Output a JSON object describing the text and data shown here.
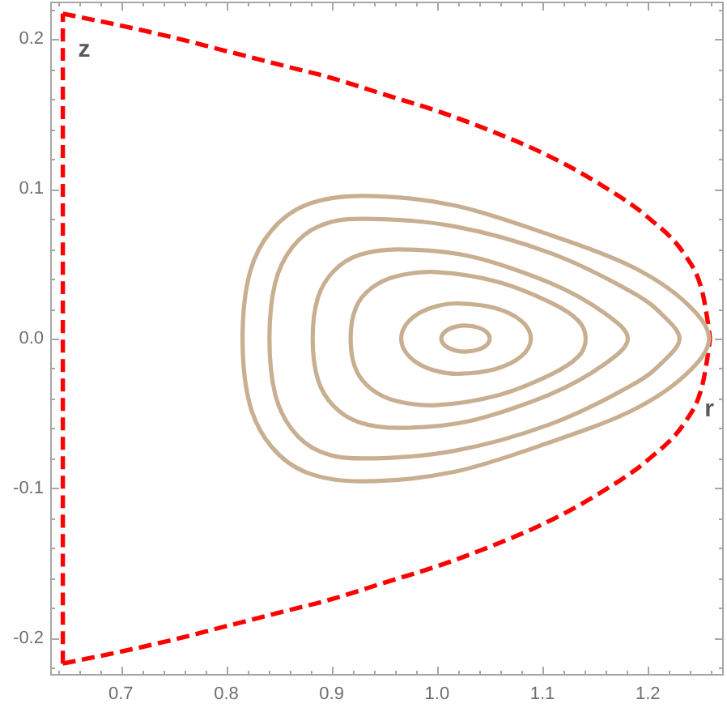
{
  "chart_data": {
    "type": "line",
    "xlabel": "r",
    "ylabel": "z",
    "marker": "none",
    "grid": false,
    "legend": false,
    "xlim": [
      0.633,
      1.272
    ],
    "ylim": [
      -0.225,
      0.225
    ],
    "xticks": [
      {
        "value": 0.64,
        "label": null
      },
      {
        "value": 0.66,
        "label": null
      },
      {
        "value": 0.68,
        "label": null
      },
      0.7,
      {
        "value": 0.72,
        "label": null
      },
      {
        "value": 0.74,
        "label": null
      },
      {
        "value": 0.76,
        "label": null
      },
      {
        "value": 0.78,
        "label": null
      },
      0.8,
      {
        "value": 0.82,
        "label": null
      },
      {
        "value": 0.84,
        "label": null
      },
      {
        "value": 0.86,
        "label": null
      },
      {
        "value": 0.88,
        "label": null
      },
      0.9,
      {
        "value": 0.92,
        "label": null
      },
      {
        "value": 0.94,
        "label": null
      },
      {
        "value": 0.96,
        "label": null
      },
      {
        "value": 0.98,
        "label": null
      },
      {
        "value": 1,
        "label": "1.0"
      },
      {
        "value": 1.02,
        "label": null
      },
      {
        "value": 1.04,
        "label": null
      },
      {
        "value": 1.06,
        "label": null
      },
      {
        "value": 1.08,
        "label": null
      },
      1.1,
      {
        "value": 1.12,
        "label": null
      },
      {
        "value": 1.14,
        "label": null
      },
      {
        "value": 1.16,
        "label": null
      },
      {
        "value": 1.18,
        "label": null
      },
      1.2,
      {
        "value": 1.22,
        "label": null
      },
      {
        "value": 1.24,
        "label": null
      },
      {
        "value": 1.26,
        "label": null
      }
    ],
    "yticks": [
      {
        "value": -0.22,
        "label": null
      },
      -0.2,
      {
        "value": -0.18,
        "label": null
      },
      {
        "value": -0.16,
        "label": null
      },
      {
        "value": -0.14,
        "label": null
      },
      {
        "value": -0.12,
        "label": null
      },
      -0.1,
      {
        "value": -0.08,
        "label": null
      },
      {
        "value": -0.06,
        "label": null
      },
      {
        "value": -0.04,
        "label": null
      },
      {
        "value": -0.02,
        "label": null
      },
      {
        "value": 0,
        "label": "0.0"
      },
      {
        "value": 0.02,
        "label": null
      },
      {
        "value": 0.04,
        "label": null
      },
      {
        "value": 0.06,
        "label": null
      },
      {
        "value": 0.08,
        "label": null
      },
      0.1,
      {
        "value": 0.12,
        "label": null
      },
      {
        "value": 0.14,
        "label": null
      },
      {
        "value": 0.16,
        "label": null
      },
      {
        "value": 0.18,
        "label": null
      },
      0.2,
      {
        "value": 0.22,
        "label": null
      }
    ],
    "series": [
      {
        "color": "#ff0000",
        "line_style": "dashed",
        "x": [
          0.645,
          0.645
        ],
        "values": [
          -0.217,
          0.217
        ]
      },
      {
        "color": "#ff0000",
        "line_style": "dashed",
        "x": [
          0.645,
          0.7,
          0.75,
          0.8,
          0.85,
          0.9,
          0.95,
          1.0,
          1.05,
          1.1,
          1.15,
          1.2,
          1.236,
          1.251,
          1.256,
          1.259
        ],
        "values": [
          0.217,
          0.209,
          0.201,
          0.192,
          0.183,
          0.174,
          0.163,
          0.152,
          0.139,
          0.124,
          0.105,
          0.081,
          0.055,
          0.033,
          0.015,
          0
        ]
      },
      {
        "color": "#ff0000",
        "line_style": "dashed",
        "x": [
          0.645,
          0.7,
          0.75,
          0.8,
          0.85,
          0.9,
          0.95,
          1.0,
          1.05,
          1.1,
          1.15,
          1.2,
          1.236,
          1.251,
          1.256,
          1.259
        ],
        "values": [
          -0.217,
          -0.209,
          -0.201,
          -0.192,
          -0.183,
          -0.174,
          -0.163,
          -0.152,
          -0.139,
          -0.124,
          -0.105,
          -0.081,
          -0.055,
          -0.033,
          -0.015,
          0
        ]
      }
    ]
  }
}
